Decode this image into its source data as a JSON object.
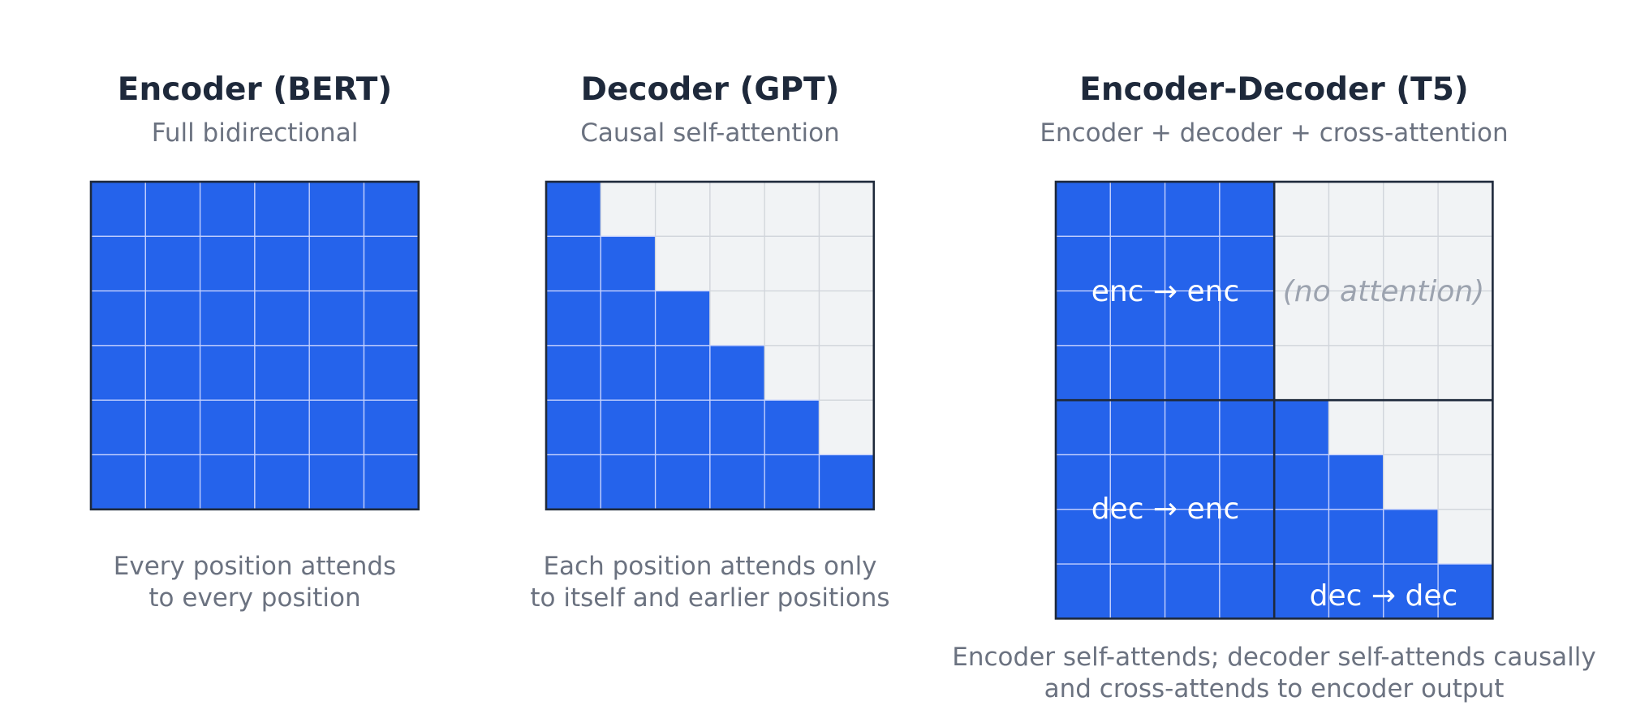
{
  "colors": {
    "attend": "#2563eb",
    "blocked": "#f1f3f5",
    "grid_on_attend": "#c7d2fe",
    "grid_on_blocked": "#d1d5db",
    "border": "#1e293b",
    "title": "#1e293b",
    "muted": "#6b7280",
    "no_attention": "#9ca3af"
  },
  "panels": [
    {
      "id": "encoder",
      "title": "Encoder (BERT)",
      "subtitle": "Full bidirectional",
      "caption": [
        "Every position attends",
        "to every position"
      ],
      "mask": "full",
      "size": 6
    },
    {
      "id": "decoder",
      "title": "Decoder (GPT)",
      "subtitle": "Causal self-attention",
      "caption": [
        "Each position attends only",
        "to itself and earlier positions"
      ],
      "mask": "causal",
      "size": 6
    },
    {
      "id": "encdec",
      "title": "Encoder-Decoder (T5)",
      "subtitle": "Encoder + decoder + cross-attention",
      "caption": [
        "Encoder self-attends; decoder self-attends causally",
        "and cross-attends to encoder output"
      ],
      "mask": "encoder-decoder",
      "size": 8,
      "block_labels": {
        "enc_enc": "enc → enc",
        "no_attention": "(no attention)",
        "dec_enc": "dec → enc",
        "dec_dec": "dec → dec"
      }
    }
  ]
}
